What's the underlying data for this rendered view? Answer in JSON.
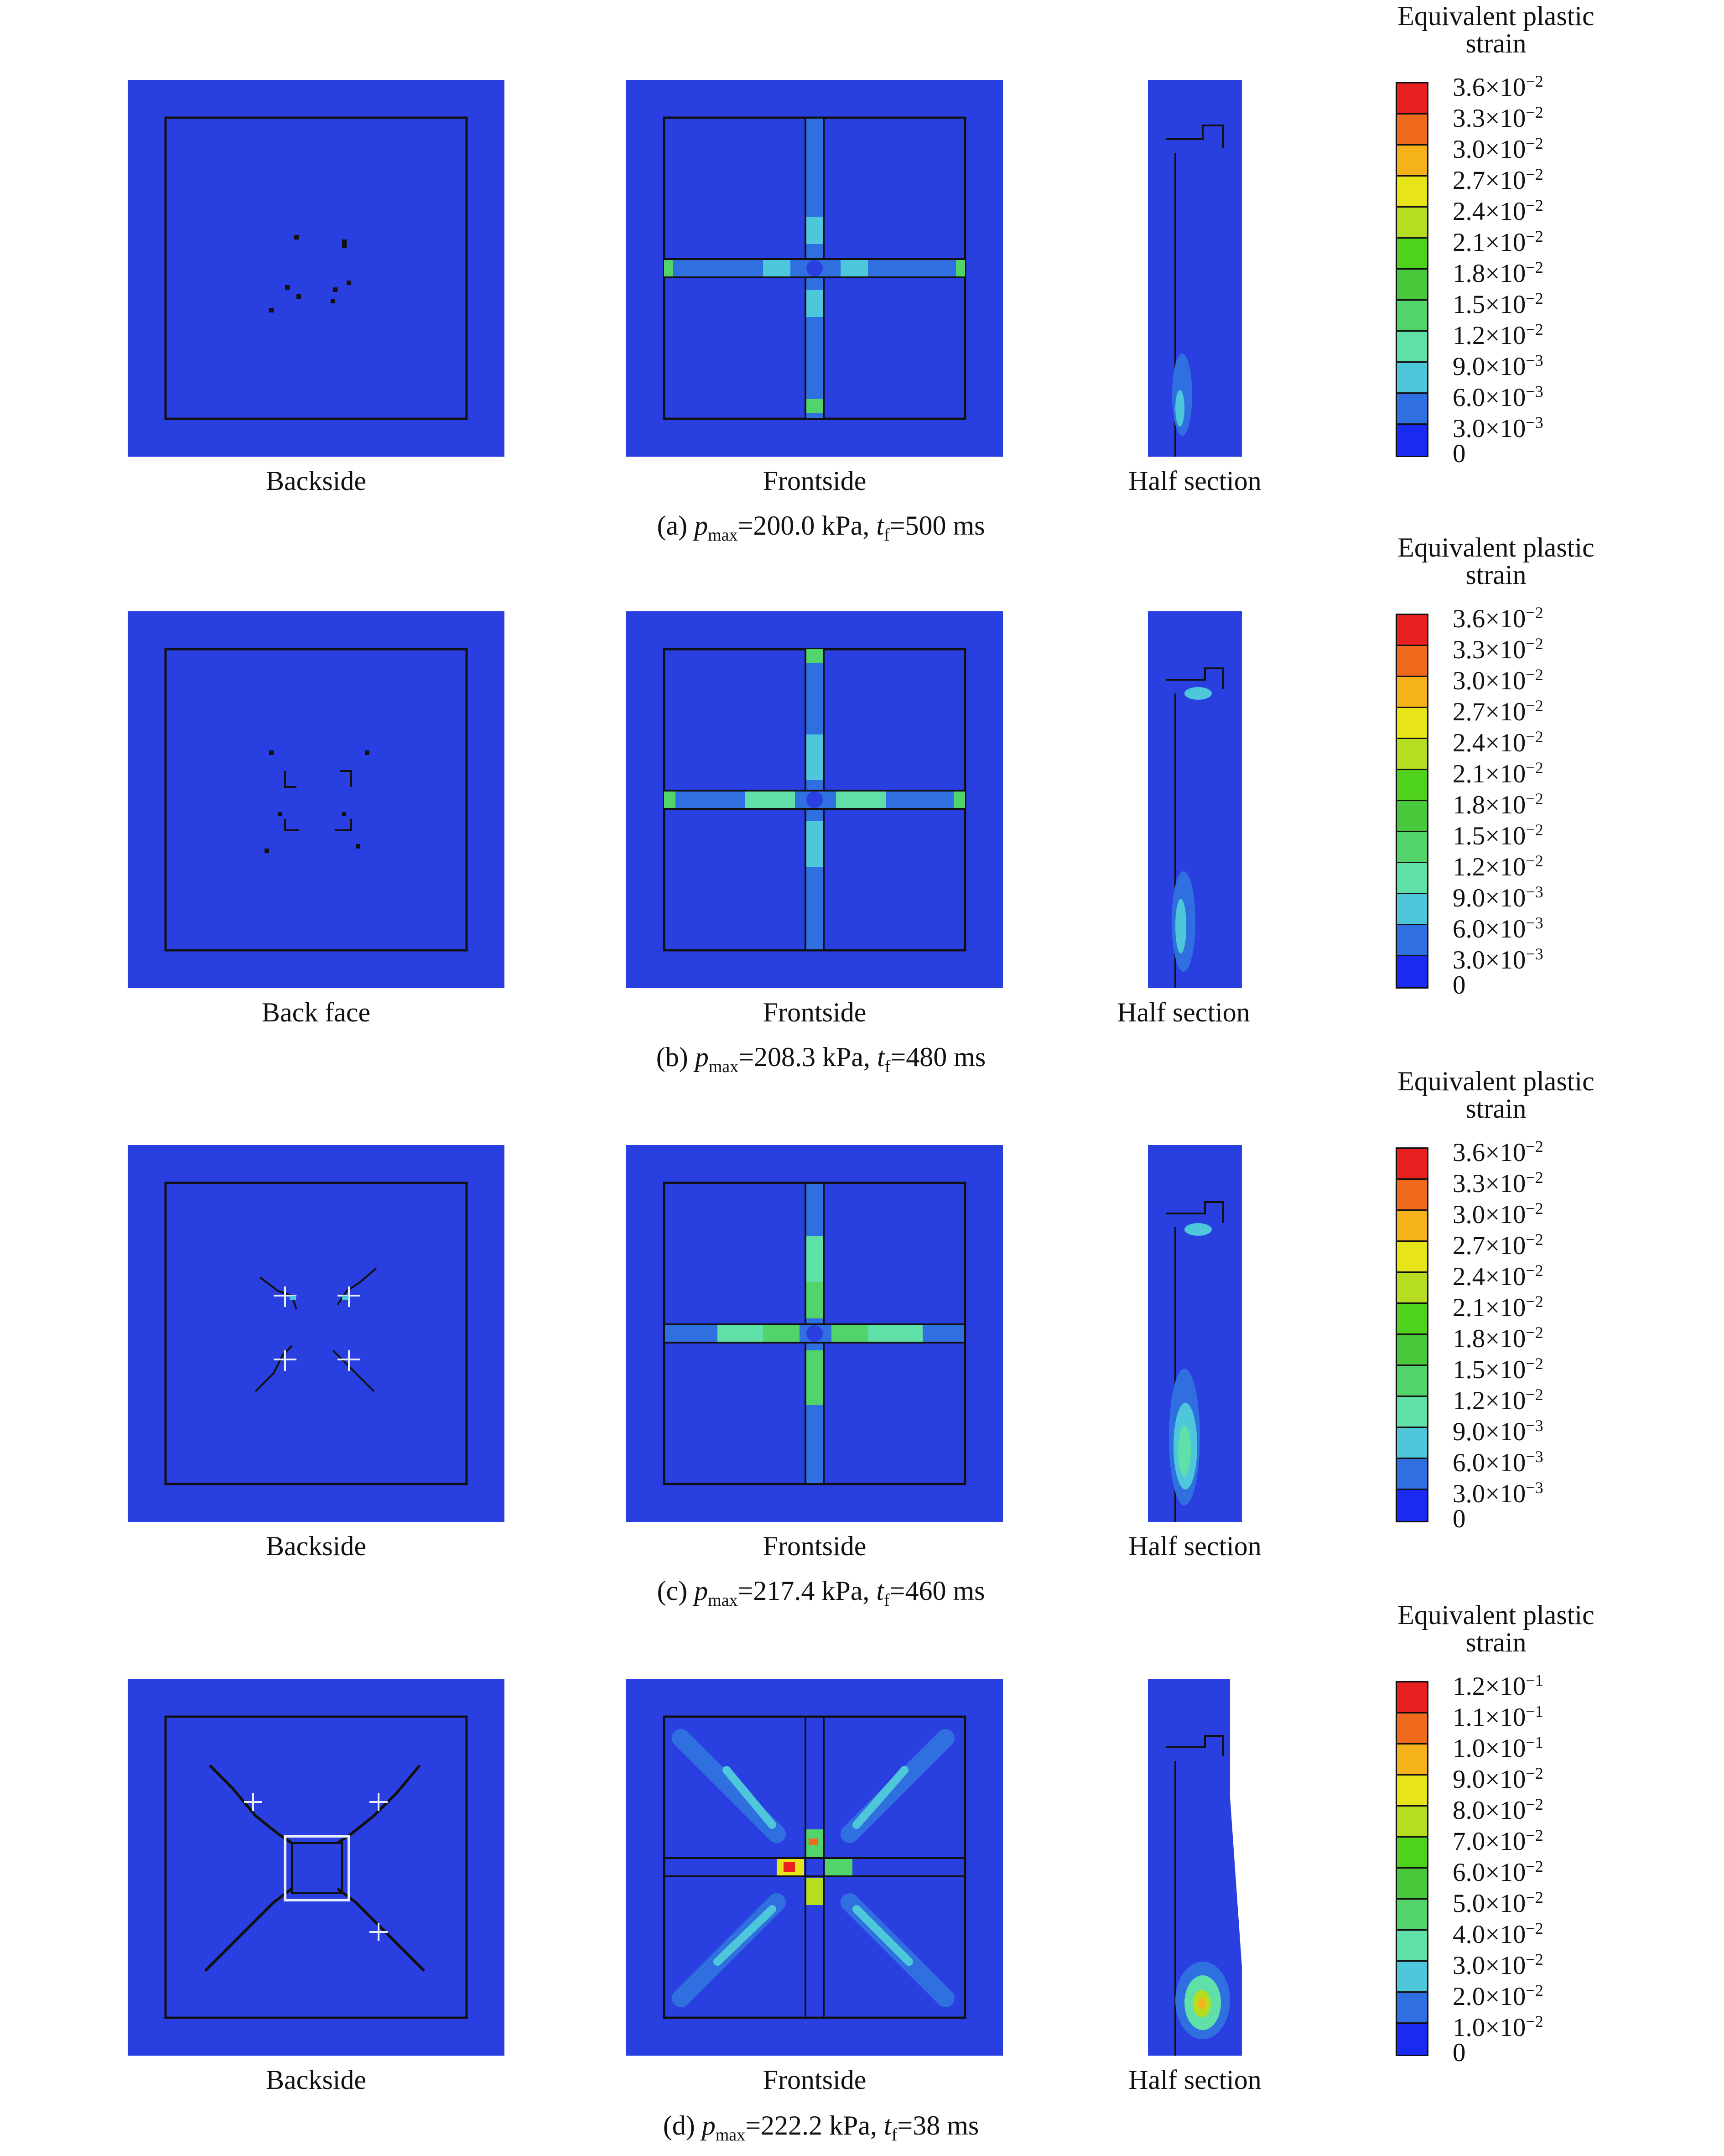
{
  "colors": {
    "background": "#2a3fe0",
    "scale": [
      "#1a2af0",
      "#2f6fe0",
      "#4dc7d9",
      "#5fe0a8",
      "#52d46a",
      "#48c83a",
      "#4fd21c",
      "#b7dd22",
      "#e8e41a",
      "#f5b21a",
      "#f06a1e",
      "#e82020"
    ]
  },
  "panel_labels": [
    "Backside",
    "Frontside",
    "Half section"
  ],
  "rows": [
    {
      "id": "a",
      "labels": [
        "Backside",
        "Frontside",
        "Half section"
      ],
      "caption_prefix": "(a) ",
      "p_symbol": "p",
      "p_sub": "max",
      "p_value": "=200.0 kPa, ",
      "t_symbol": "t",
      "t_sub": "f",
      "t_value": "=500 ms",
      "legend_title_1": "Equivalent plastic",
      "legend_title_2": "strain",
      "ticks": [
        [
          "3.6×10",
          "−2"
        ],
        [
          "3.3×10",
          "−2"
        ],
        [
          "3.0×10",
          "−2"
        ],
        [
          "2.7×10",
          "−2"
        ],
        [
          "2.4×10",
          "−2"
        ],
        [
          "2.1×10",
          "−2"
        ],
        [
          "1.8×10",
          "−2"
        ],
        [
          "1.5×10",
          "−2"
        ],
        [
          "1.2×10",
          "−2"
        ],
        [
          "9.0×10",
          "−3"
        ],
        [
          "6.0×10",
          "−3"
        ],
        [
          "3.0×10",
          "−3"
        ],
        [
          "0",
          ""
        ]
      ]
    },
    {
      "id": "b",
      "labels": [
        "Back face",
        "Frontside",
        "Half section"
      ],
      "caption_prefix": "(b) ",
      "p_symbol": "p",
      "p_sub": "max",
      "p_value": "=208.3 kPa, ",
      "t_symbol": "t",
      "t_sub": "f",
      "t_value": "=480 ms",
      "legend_title_1": "Equivalent plastic",
      "legend_title_2": "strain",
      "ticks": [
        [
          "3.6×10",
          "−2"
        ],
        [
          "3.3×10",
          "−2"
        ],
        [
          "3.0×10",
          "−2"
        ],
        [
          "2.7×10",
          "−2"
        ],
        [
          "2.4×10",
          "−2"
        ],
        [
          "2.1×10",
          "−2"
        ],
        [
          "1.8×10",
          "−2"
        ],
        [
          "1.5×10",
          "−2"
        ],
        [
          "1.2×10",
          "−2"
        ],
        [
          "9.0×10",
          "−3"
        ],
        [
          "6.0×10",
          "−3"
        ],
        [
          "3.0×10",
          "−3"
        ],
        [
          "0",
          ""
        ]
      ]
    },
    {
      "id": "c",
      "labels": [
        "Backside",
        "Frontside",
        "Half section"
      ],
      "caption_prefix": "(c) ",
      "p_symbol": "p",
      "p_sub": "max",
      "p_value": "=217.4 kPa, ",
      "t_symbol": "t",
      "t_sub": "f",
      "t_value": "=460 ms",
      "legend_title_1": "Equivalent plastic",
      "legend_title_2": "strain",
      "ticks": [
        [
          "3.6×10",
          "−2"
        ],
        [
          "3.3×10",
          "−2"
        ],
        [
          "3.0×10",
          "−2"
        ],
        [
          "2.7×10",
          "−2"
        ],
        [
          "2.4×10",
          "−2"
        ],
        [
          "2.1×10",
          "−2"
        ],
        [
          "1.8×10",
          "−2"
        ],
        [
          "1.5×10",
          "−2"
        ],
        [
          "1.2×10",
          "−2"
        ],
        [
          "9.0×10",
          "−3"
        ],
        [
          "6.0×10",
          "−3"
        ],
        [
          "3.0×10",
          "−3"
        ],
        [
          "0",
          ""
        ]
      ]
    },
    {
      "id": "d",
      "labels": [
        "Backside",
        "Frontside",
        "Half section"
      ],
      "caption_prefix": "(d) ",
      "p_symbol": "p",
      "p_sub": "max",
      "p_value": "=222.2 kPa, ",
      "t_symbol": "t",
      "t_sub": "f",
      "t_value": "=38 ms",
      "legend_title_1": "Equivalent plastic",
      "legend_title_2": "strain",
      "ticks": [
        [
          "1.2×10",
          "−1"
        ],
        [
          "1.1×10",
          "−1"
        ],
        [
          "1.0×10",
          "−1"
        ],
        [
          "9.0×10",
          "−2"
        ],
        [
          "8.0×10",
          "−2"
        ],
        [
          "7.0×10",
          "−2"
        ],
        [
          "6.0×10",
          "−2"
        ],
        [
          "5.0×10",
          "−2"
        ],
        [
          "4.0×10",
          "−2"
        ],
        [
          "3.0×10",
          "−2"
        ],
        [
          "2.0×10",
          "−2"
        ],
        [
          "1.0×10",
          "−2"
        ],
        [
          "0",
          ""
        ]
      ]
    }
  ]
}
